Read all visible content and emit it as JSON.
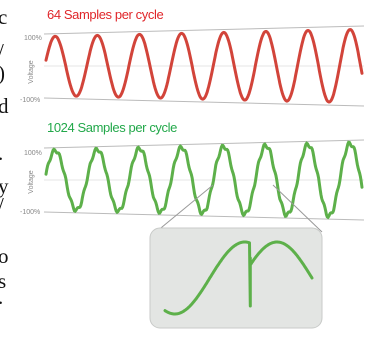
{
  "edge_letters": [
    "c",
    "/",
    ")",
    "d",
    ".",
    "y",
    "/",
    "o",
    "s",
    "."
  ],
  "top_plot": {
    "title": "64 Samples per cycle",
    "color": "#d2443a",
    "y_top": "100%",
    "y_bottom": "-100%",
    "y_label": "Voltage"
  },
  "bottom_plot": {
    "title": "1024 Samples per cycle",
    "color": "#5db04a",
    "y_top": "100%",
    "y_bottom": "-100%",
    "y_label": "Voltage"
  },
  "zoom_inset": {
    "color": "#5db04a",
    "background": "#e3e5e3"
  }
}
